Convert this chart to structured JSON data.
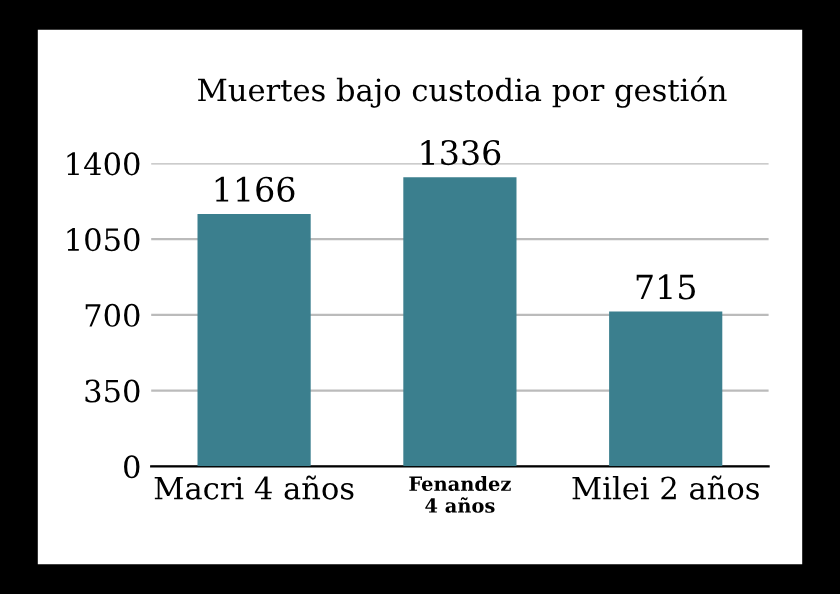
{
  "chart_data": {
    "type": "bar",
    "title": "Muertes bajo custodia por gestión",
    "categories": [
      "Macri 4 años",
      "Fenandez\n4 años",
      "Milei 2 años"
    ],
    "values": [
      1166,
      1336,
      715
    ],
    "color": "#3b7f8e",
    "data_labels": true,
    "ylim": [
      0,
      1400
    ],
    "yticks": [
      0,
      350,
      700,
      1050,
      1400
    ],
    "grid": "y"
  }
}
